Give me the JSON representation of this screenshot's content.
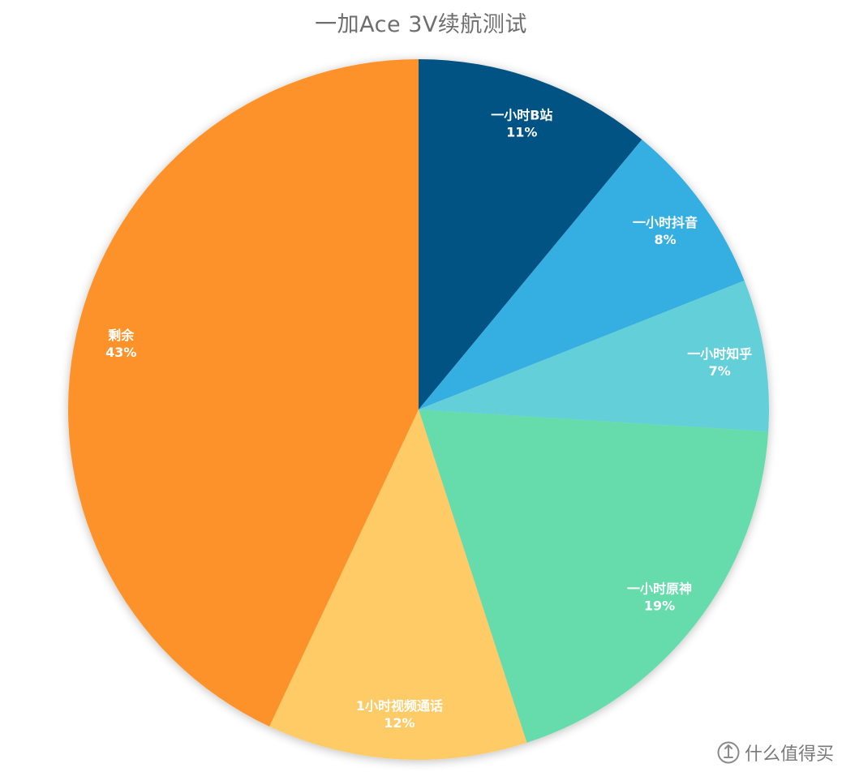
{
  "chart_data": {
    "type": "pie",
    "title": "一加Ace 3V续航测试",
    "slices": [
      {
        "label": "一小时B站",
        "value": 11,
        "value_label": "11%",
        "color": "#055282"
      },
      {
        "label": "一小时抖音",
        "value": 8,
        "value_label": "8%",
        "color": "#34afe2"
      },
      {
        "label": "一小时知乎",
        "value": 7,
        "value_label": "7%",
        "color": "#62cfd9"
      },
      {
        "label": "一小时原神",
        "value": 19,
        "value_label": "19%",
        "color": "#66dbab"
      },
      {
        "label": "1小时视频通话",
        "value": 12,
        "value_label": "12%",
        "color": "#ffcb66"
      },
      {
        "label": "剩余",
        "value": 43,
        "value_label": "43%",
        "color": "#fe922a"
      }
    ],
    "start": "12 o'clock, clockwise",
    "legend": "none"
  },
  "watermark": {
    "text": "什么值得买"
  }
}
